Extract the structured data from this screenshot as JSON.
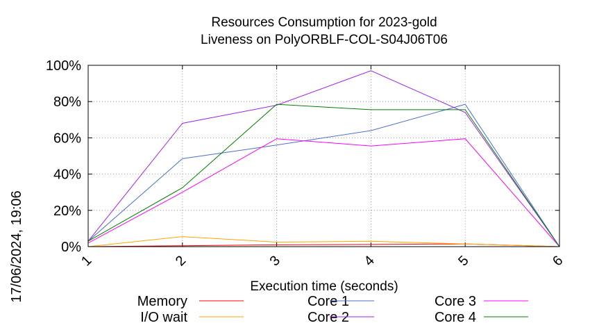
{
  "chart_data": {
    "type": "line",
    "title_line1": "Resources Consumption for 2023-gold",
    "title_line2": "Liveness on PolyORBLF-COL-S04J06T06",
    "xlabel": "Execution time (seconds)",
    "ylabel": "",
    "side_label": "17/06/2024, 19:06",
    "x": [
      1,
      2,
      3,
      4,
      5,
      6
    ],
    "x_ticks": [
      "1",
      "2",
      "3",
      "4",
      "5",
      "6"
    ],
    "y_ticks": [
      "0%",
      "20%",
      "40%",
      "60%",
      "80%",
      "100%"
    ],
    "xlim": [
      1,
      6
    ],
    "ylim": [
      0,
      100
    ],
    "grid": true,
    "legend_position": "bottom",
    "series": [
      {
        "name": "Memory",
        "color": "#ff0000",
        "values": [
          0,
          0.5,
          1.0,
          1.2,
          1.5,
          0
        ]
      },
      {
        "name": "I/O wait",
        "color": "#ffa500",
        "values": [
          0,
          5.5,
          2.5,
          3.0,
          1.5,
          0
        ]
      },
      {
        "name": "Core 1",
        "color": "#4a6fcf",
        "values": [
          3,
          48.5,
          56,
          64,
          78.5,
          0
        ]
      },
      {
        "name": "Core 2",
        "color": "#a020f0",
        "values": [
          3,
          68,
          78,
          97,
          74,
          0
        ]
      },
      {
        "name": "Core 3",
        "color": "#ff00ff",
        "values": [
          2,
          30,
          59.5,
          55.5,
          59.5,
          0
        ]
      },
      {
        "name": "Core 4",
        "color": "#008000",
        "values": [
          3,
          32.5,
          78.5,
          75.5,
          75.5,
          0
        ]
      }
    ]
  }
}
